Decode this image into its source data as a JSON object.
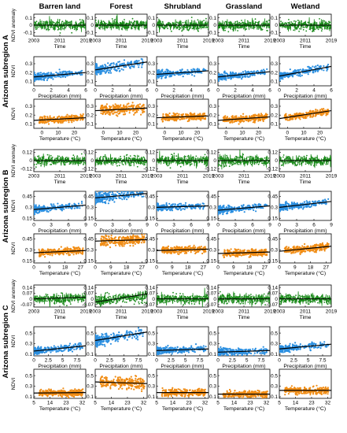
{
  "columns": [
    "Barren land",
    "Forest",
    "Shrubland",
    "Grassland",
    "Wetland"
  ],
  "colors": {
    "anomaly": "#1a8a1a",
    "precip": "#2b8fe0",
    "temp": "#f08c14",
    "line": "#000000"
  },
  "regions": [
    {
      "label": "Arizona subregion A",
      "rows": [
        {
          "kind": "anomaly",
          "ylabel": "NDVI anomaly",
          "xlabel": "Time",
          "xticks": [
            "2003",
            "2011",
            "2019"
          ],
          "yticks": [
            "0.1",
            "0",
            "-0.1"
          ],
          "xlim": [
            2003,
            2019
          ],
          "ylim": [
            -0.15,
            0.15
          ],
          "ytick_values": [
            0.1,
            0,
            -0.1
          ]
        },
        {
          "kind": "precip",
          "ylabel": "NDVI",
          "xlabel": "Precipitation (mm)",
          "xticks": [
            "0",
            "2",
            "4",
            "6"
          ],
          "yticks": [
            "0.3",
            "0.2",
            "0.1"
          ],
          "xlim": [
            0,
            6
          ],
          "ylim": [
            0.05,
            0.38
          ],
          "ytick_values": [
            0.3,
            0.2,
            0.1
          ]
        },
        {
          "kind": "temp",
          "ylabel": "NDVI",
          "xlabel": "Temperature (°C)",
          "xticks": [
            "0",
            "10",
            "20"
          ],
          "yticks": [
            "0.3",
            "0.2",
            "0.1"
          ],
          "xlim": [
            -5,
            27
          ],
          "ylim": [
            0.05,
            0.38
          ],
          "ytick_values": [
            0.3,
            0.2,
            0.1
          ]
        }
      ]
    },
    {
      "label": "Arizona subregion B",
      "rows": [
        {
          "kind": "anomaly",
          "ylabel": "NDVI anomaly",
          "xlabel": "Time",
          "xticks": [
            "2003",
            "2011",
            "2019"
          ],
          "yticks": [
            "0.12",
            "0",
            "-0.12"
          ],
          "xlim": [
            2003,
            2019
          ],
          "ylim": [
            -0.16,
            0.16
          ],
          "ytick_values": [
            0.12,
            0,
            -0.12
          ]
        },
        {
          "kind": "precip",
          "ylabel": "NDVI",
          "xlabel": "Precipitation (mm)",
          "xticks": [
            "0",
            "3",
            "6",
            "9"
          ],
          "yticks": [
            "0.45",
            "0.3",
            "0.15"
          ],
          "xlim": [
            0,
            9
          ],
          "ylim": [
            0.12,
            0.52
          ],
          "ytick_values": [
            0.45,
            0.3,
            0.15
          ]
        },
        {
          "kind": "temp",
          "ylabel": "NDVI",
          "xlabel": "Temperature (°C)",
          "xticks": [
            "0",
            "9",
            "18",
            "27"
          ],
          "yticks": [
            "0.45",
            "0.3",
            "0.15"
          ],
          "xlim": [
            0,
            30
          ],
          "ylim": [
            0.12,
            0.52
          ],
          "ytick_values": [
            0.45,
            0.3,
            0.15
          ]
        }
      ]
    },
    {
      "label": "Arizona subregion C",
      "rows": [
        {
          "kind": "anomaly",
          "ylabel": "NDVI anomaly",
          "xlabel": "Time",
          "xticks": [
            "2003",
            "2011",
            "2019"
          ],
          "yticks": [
            "0.14",
            "0.07",
            "0",
            "-0.07"
          ],
          "xlim": [
            2003,
            2019
          ],
          "ylim": [
            -0.1,
            0.17
          ],
          "ytick_values": [
            0.14,
            0.07,
            0,
            -0.07
          ]
        },
        {
          "kind": "precip",
          "ylabel": "NDVI",
          "xlabel": "Precipitation (mm)",
          "xticks": [
            "0",
            "2.5",
            "5",
            "7.5"
          ],
          "yticks": [
            "0.5",
            "0.3",
            "0.1"
          ],
          "xlim": [
            0,
            9
          ],
          "ylim": [
            0.07,
            0.62
          ],
          "ytick_values": [
            0.5,
            0.3,
            0.1
          ]
        },
        {
          "kind": "temp",
          "ylabel": "NDVI",
          "xlabel": "Temperature (°C)",
          "xticks": [
            "5",
            "14",
            "23",
            "32"
          ],
          "yticks": [
            "0.5",
            "0.3",
            "0.1"
          ],
          "xlim": [
            5,
            34
          ],
          "ylim": [
            0.07,
            0.62
          ],
          "ytick_values": [
            0.5,
            0.3,
            0.1
          ]
        }
      ]
    }
  ],
  "chart_data": {
    "type": "scatter",
    "layout": "small-multiples grid, 9 rows x 5 columns",
    "column_titles": [
      "Barren land",
      "Forest",
      "Shrubland",
      "Grassland",
      "Wetland"
    ],
    "row_groups": [
      "Arizona subregion A",
      "Arizona subregion B",
      "Arizona subregion C"
    ],
    "series_center": {
      "anomaly": 0,
      "precip": [
        [
          0.16,
          0.24,
          0.2,
          0.17,
          0.19
        ],
        [
          0.28,
          0.45,
          0.31,
          0.27,
          0.31
        ],
        [
          0.17,
          0.38,
          0.18,
          0.15,
          0.22
        ]
      ],
      "temp": [
        [
          0.15,
          0.26,
          0.18,
          0.16,
          0.2
        ],
        [
          0.27,
          0.43,
          0.3,
          0.26,
          0.31
        ],
        [
          0.17,
          0.37,
          0.18,
          0.15,
          0.22
        ]
      ]
    },
    "trend_lines": {
      "anomaly": [
        [
          [
            2003,
            0
          ],
          [
            2019,
            0
          ]
        ],
        [
          [
            2003,
            0
          ],
          [
            2019,
            0
          ]
        ],
        [
          [
            2003,
            0
          ],
          [
            2019,
            0
          ]
        ],
        [
          [
            2003,
            0
          ],
          [
            2019,
            0
          ]
        ],
        [
          [
            2003,
            0
          ],
          [
            2019,
            0
          ]
        ],
        [
          [
            2003,
            0
          ],
          [
            2019,
            0
          ]
        ],
        [
          [
            2003,
            0
          ],
          [
            2019,
            0
          ]
        ],
        [
          [
            2003,
            0
          ],
          [
            2019,
            0
          ]
        ],
        [
          [
            2003,
            0
          ],
          [
            2019,
            0
          ]
        ],
        [
          [
            2003,
            0
          ],
          [
            2019,
            0
          ]
        ],
        [
          [
            2003,
            0
          ],
          [
            2019,
            0.02
          ]
        ],
        [
          [
            2003,
            -0.04
          ],
          [
            2019,
            0.06
          ]
        ],
        [
          [
            2003,
            0
          ],
          [
            2019,
            0
          ]
        ],
        [
          [
            2003,
            0
          ],
          [
            2019,
            0
          ]
        ],
        [
          [
            2003,
            0
          ],
          [
            2019,
            0
          ]
        ]
      ],
      "precip": [
        [
          [
            0,
            0.15
          ],
          [
            6,
            0.2
          ]
        ],
        [
          [
            0,
            0.23
          ],
          [
            6,
            0.32
          ]
        ],
        [
          [
            0,
            0.18
          ],
          [
            6,
            0.22
          ]
        ],
        [
          [
            0,
            0.15
          ],
          [
            6,
            0.21
          ]
        ],
        [
          [
            0,
            0.16
          ],
          [
            6,
            0.27
          ]
        ],
        [
          [
            0,
            0.27
          ],
          [
            9,
            0.33
          ]
        ],
        [
          [
            0,
            0.43
          ],
          [
            9,
            0.49
          ]
        ],
        [
          [
            0,
            0.3
          ],
          [
            9,
            0.32
          ]
        ],
        [
          [
            0,
            0.26
          ],
          [
            9,
            0.32
          ]
        ],
        [
          [
            0,
            0.3
          ],
          [
            9,
            0.38
          ]
        ],
        [
          [
            0,
            0.16
          ],
          [
            9,
            0.26
          ]
        ],
        [
          [
            0,
            0.36
          ],
          [
            9,
            0.52
          ]
        ],
        [
          [
            0,
            0.17
          ],
          [
            9,
            0.2
          ]
        ],
        [
          [
            0,
            0.14
          ],
          [
            9,
            0.17
          ]
        ],
        [
          [
            0,
            0.2
          ],
          [
            9,
            0.29
          ]
        ]
      ],
      "temp": [
        [
          [
            -5,
            0.14
          ],
          [
            27,
            0.17
          ]
        ],
        [
          [
            -5,
            0.25
          ],
          [
            27,
            0.28
          ]
        ],
        [
          [
            -5,
            0.17
          ],
          [
            27,
            0.19
          ]
        ],
        [
          [
            -5,
            0.14
          ],
          [
            27,
            0.18
          ]
        ],
        [
          [
            -5,
            0.16
          ],
          [
            27,
            0.25
          ]
        ],
        [
          [
            0,
            0.26
          ],
          [
            30,
            0.29
          ]
        ],
        [
          [
            0,
            0.42
          ],
          [
            30,
            0.44
          ]
        ],
        [
          [
            0,
            0.29
          ],
          [
            30,
            0.31
          ]
        ],
        [
          [
            0,
            0.25
          ],
          [
            30,
            0.27
          ]
        ],
        [
          [
            0,
            0.28
          ],
          [
            30,
            0.35
          ]
        ],
        [
          [
            5,
            0.17
          ],
          [
            34,
            0.18
          ]
        ],
        [
          [
            5,
            0.38
          ],
          [
            34,
            0.35
          ]
        ],
        [
          [
            5,
            0.18
          ],
          [
            34,
            0.18
          ]
        ],
        [
          [
            5,
            0.15
          ],
          [
            34,
            0.15
          ]
        ],
        [
          [
            5,
            0.22
          ],
          [
            34,
            0.22
          ]
        ]
      ]
    }
  }
}
